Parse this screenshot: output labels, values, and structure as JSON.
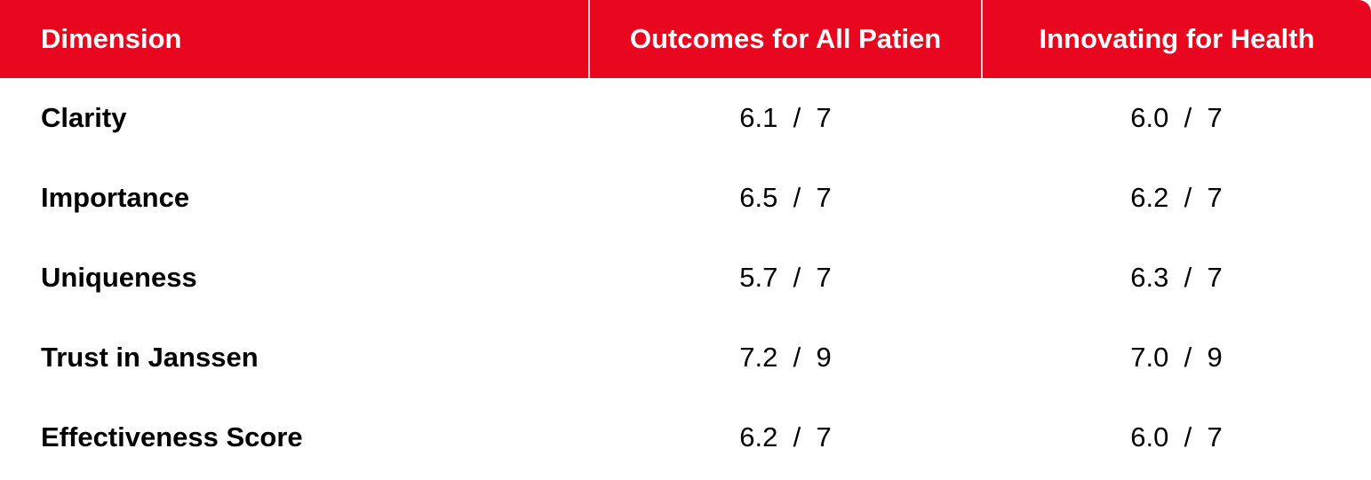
{
  "table": {
    "headers": [
      "Dimension",
      "Outcomes for All Patien",
      "Innovating for Health"
    ],
    "rows": [
      [
        "Clarity",
        "6.1  /  7",
        "6.0  /  7"
      ],
      [
        "Importance",
        "6.5  /  7",
        "6.2  /  7"
      ],
      [
        "Uniqueness",
        "5.7  /  7",
        "6.3  /  7"
      ],
      [
        "Trust in Janssen",
        "7.2  /  9",
        "7.0  /  9"
      ],
      [
        "Effectiveness Score",
        "6.2  /  7",
        "6.0  /  7"
      ]
    ]
  }
}
